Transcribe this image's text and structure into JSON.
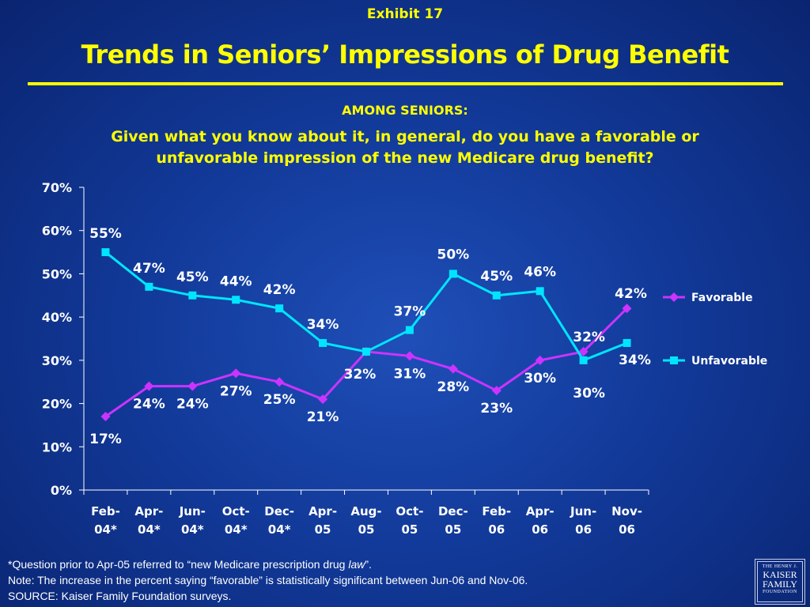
{
  "header": {
    "exhibit": "Exhibit 17",
    "title": "Trends in Seniors’ Impressions of Drug Benefit",
    "subtitle": "AMONG SENIORS:",
    "question_line1": "Given what you know about it, in general, do you have a favorable or",
    "question_line2": "unfavorable impression of the new Medicare drug benefit?"
  },
  "colors": {
    "background": "#123a9a",
    "title": "#ffff00",
    "favorable": "#cc33ff",
    "unfavorable": "#00e5ff",
    "axis": "#ffffff"
  },
  "chart_data": {
    "type": "line",
    "categories": [
      [
        "Feb-",
        "04*"
      ],
      [
        "Apr-",
        "04*"
      ],
      [
        "Jun-",
        "04*"
      ],
      [
        "Oct-",
        "04*"
      ],
      [
        "Dec-",
        "04*"
      ],
      [
        "Apr-",
        "05"
      ],
      [
        "Aug-",
        "05"
      ],
      [
        "Oct-",
        "05"
      ],
      [
        "Dec-",
        "05"
      ],
      [
        "Feb-",
        "06"
      ],
      [
        "Apr-",
        "06"
      ],
      [
        "Jun-",
        "06"
      ],
      [
        "Nov-",
        "06"
      ]
    ],
    "series": [
      {
        "name": "Favorable",
        "values": [
          17,
          24,
          24,
          27,
          25,
          21,
          32,
          31,
          28,
          23,
          30,
          32,
          42
        ],
        "labels": [
          "17%",
          "24%",
          "24%",
          "27%",
          "25%",
          "21%",
          "32%",
          "31%",
          "28%",
          "23%",
          "30%",
          "32%",
          "42%"
        ],
        "marker": "diamond"
      },
      {
        "name": "Unfavorable",
        "values": [
          55,
          47,
          45,
          44,
          42,
          34,
          32,
          37,
          50,
          45,
          46,
          30,
          34
        ],
        "labels": [
          "55%",
          "47%",
          "45%",
          "44%",
          "42%",
          "34%",
          "",
          "37%",
          "50%",
          "45%",
          "46%",
          "30%",
          "34%"
        ],
        "marker": "square"
      }
    ],
    "ylim": [
      0,
      70
    ],
    "yticks": [
      "0%",
      "10%",
      "20%",
      "30%",
      "40%",
      "50%",
      "60%",
      "70%"
    ],
    "grid": false,
    "legend": "right"
  },
  "footnotes": {
    "line1_prefix": "*Question prior to Apr-05 referred to “new Medicare prescription drug ",
    "line1_italic": "law",
    "line1_suffix": "”.",
    "line2": "Note: The increase in the percent saying “favorable” is statistically significant between Jun-06 and Nov-06.",
    "line3": "SOURCE: Kaiser Family Foundation surveys."
  },
  "logo": {
    "line1": "THE HENRY J.",
    "line2": "KAISER",
    "line3": "FAMILY",
    "line4": "FOUNDATION"
  }
}
